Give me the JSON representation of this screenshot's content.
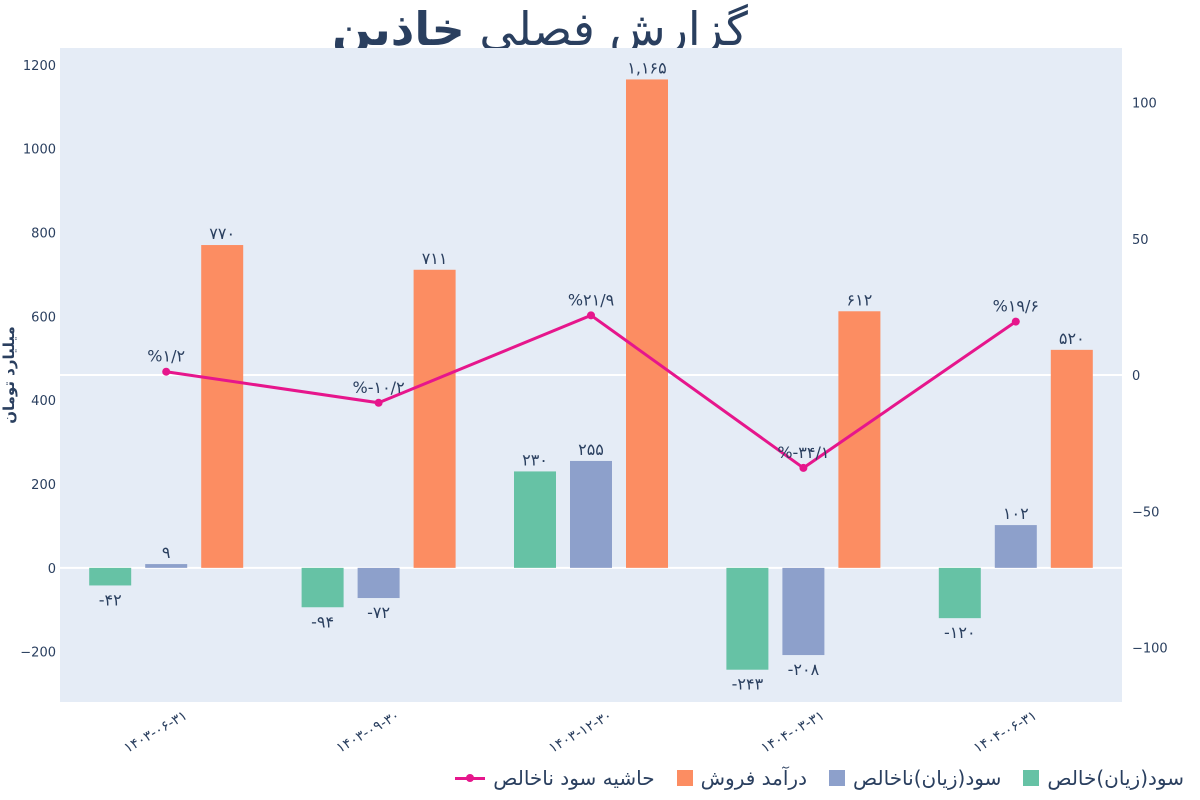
{
  "title": {
    "light": "گزارش فصلی",
    "bold": "خاذین"
  },
  "chart_data": {
    "type": "bar",
    "title": "گزارش فصلی خاذین",
    "ylabel": "میلیارد تومان",
    "ylim": [
      -320,
      1240
    ],
    "y2lim": [
      -120,
      120
    ],
    "yticks": [
      {
        "v": 1200,
        "label": "1200"
      },
      {
        "v": 1000,
        "label": "1000"
      },
      {
        "v": 800,
        "label": "800"
      },
      {
        "v": 600,
        "label": "600"
      },
      {
        "v": 400,
        "label": "400"
      },
      {
        "v": 200,
        "label": "200"
      },
      {
        "v": 0,
        "label": "0"
      },
      {
        "v": -200,
        "label": "−200"
      }
    ],
    "y2ticks": [
      {
        "v": 100,
        "label": "100"
      },
      {
        "v": 50,
        "label": "50"
      },
      {
        "v": 0,
        "label": "0"
      },
      {
        "v": -50,
        "label": "−50"
      },
      {
        "v": -100,
        "label": "−100"
      }
    ],
    "categories": [
      "۱۴۰۳-۰۶-۳۱",
      "۱۴۰۳-۰۹-۳۰",
      "۱۴۰۳-۱۲-۳۰",
      "۱۴۰۴-۰۳-۳۱",
      "۱۴۰۴-۰۶-۳۱"
    ],
    "series": [
      {
        "name": "سود(زیان)خالص",
        "kind": "bar",
        "color": "#66c2a5",
        "values": [
          -42,
          -94,
          230,
          -243,
          -120
        ],
        "labels": [
          "-۴۲",
          "-۹۴",
          "۲۳۰",
          "-۲۴۳",
          "-۱۲۰"
        ]
      },
      {
        "name": "سود(زیان)ناخالص",
        "kind": "bar",
        "color": "#8da0cb",
        "values": [
          9,
          -72,
          255,
          -208,
          102
        ],
        "labels": [
          "۹",
          "-۷۲",
          "۲۵۵",
          "-۲۰۸",
          "۱۰۲"
        ]
      },
      {
        "name": "درآمد فروش",
        "kind": "bar",
        "color": "#fc8d62",
        "values": [
          770,
          711,
          1165,
          612,
          520
        ],
        "labels": [
          "۷۷۰",
          "۷۱۱",
          "۱,۱۶۵",
          "۶۱۲",
          "۵۲۰"
        ]
      },
      {
        "name": "حاشیه سود ناخالص",
        "kind": "line",
        "axis": "y2",
        "color": "#e6168c",
        "values": [
          1.2,
          -10.2,
          21.9,
          -34.1,
          19.6
        ],
        "labels": [
          "%۱/۲",
          "%-۱۰/۲",
          "%۲۱/۹",
          "%-۳۴/۱",
          "%۱۹/۶"
        ]
      }
    ],
    "legend_position": "bottom-right",
    "grid": false
  }
}
